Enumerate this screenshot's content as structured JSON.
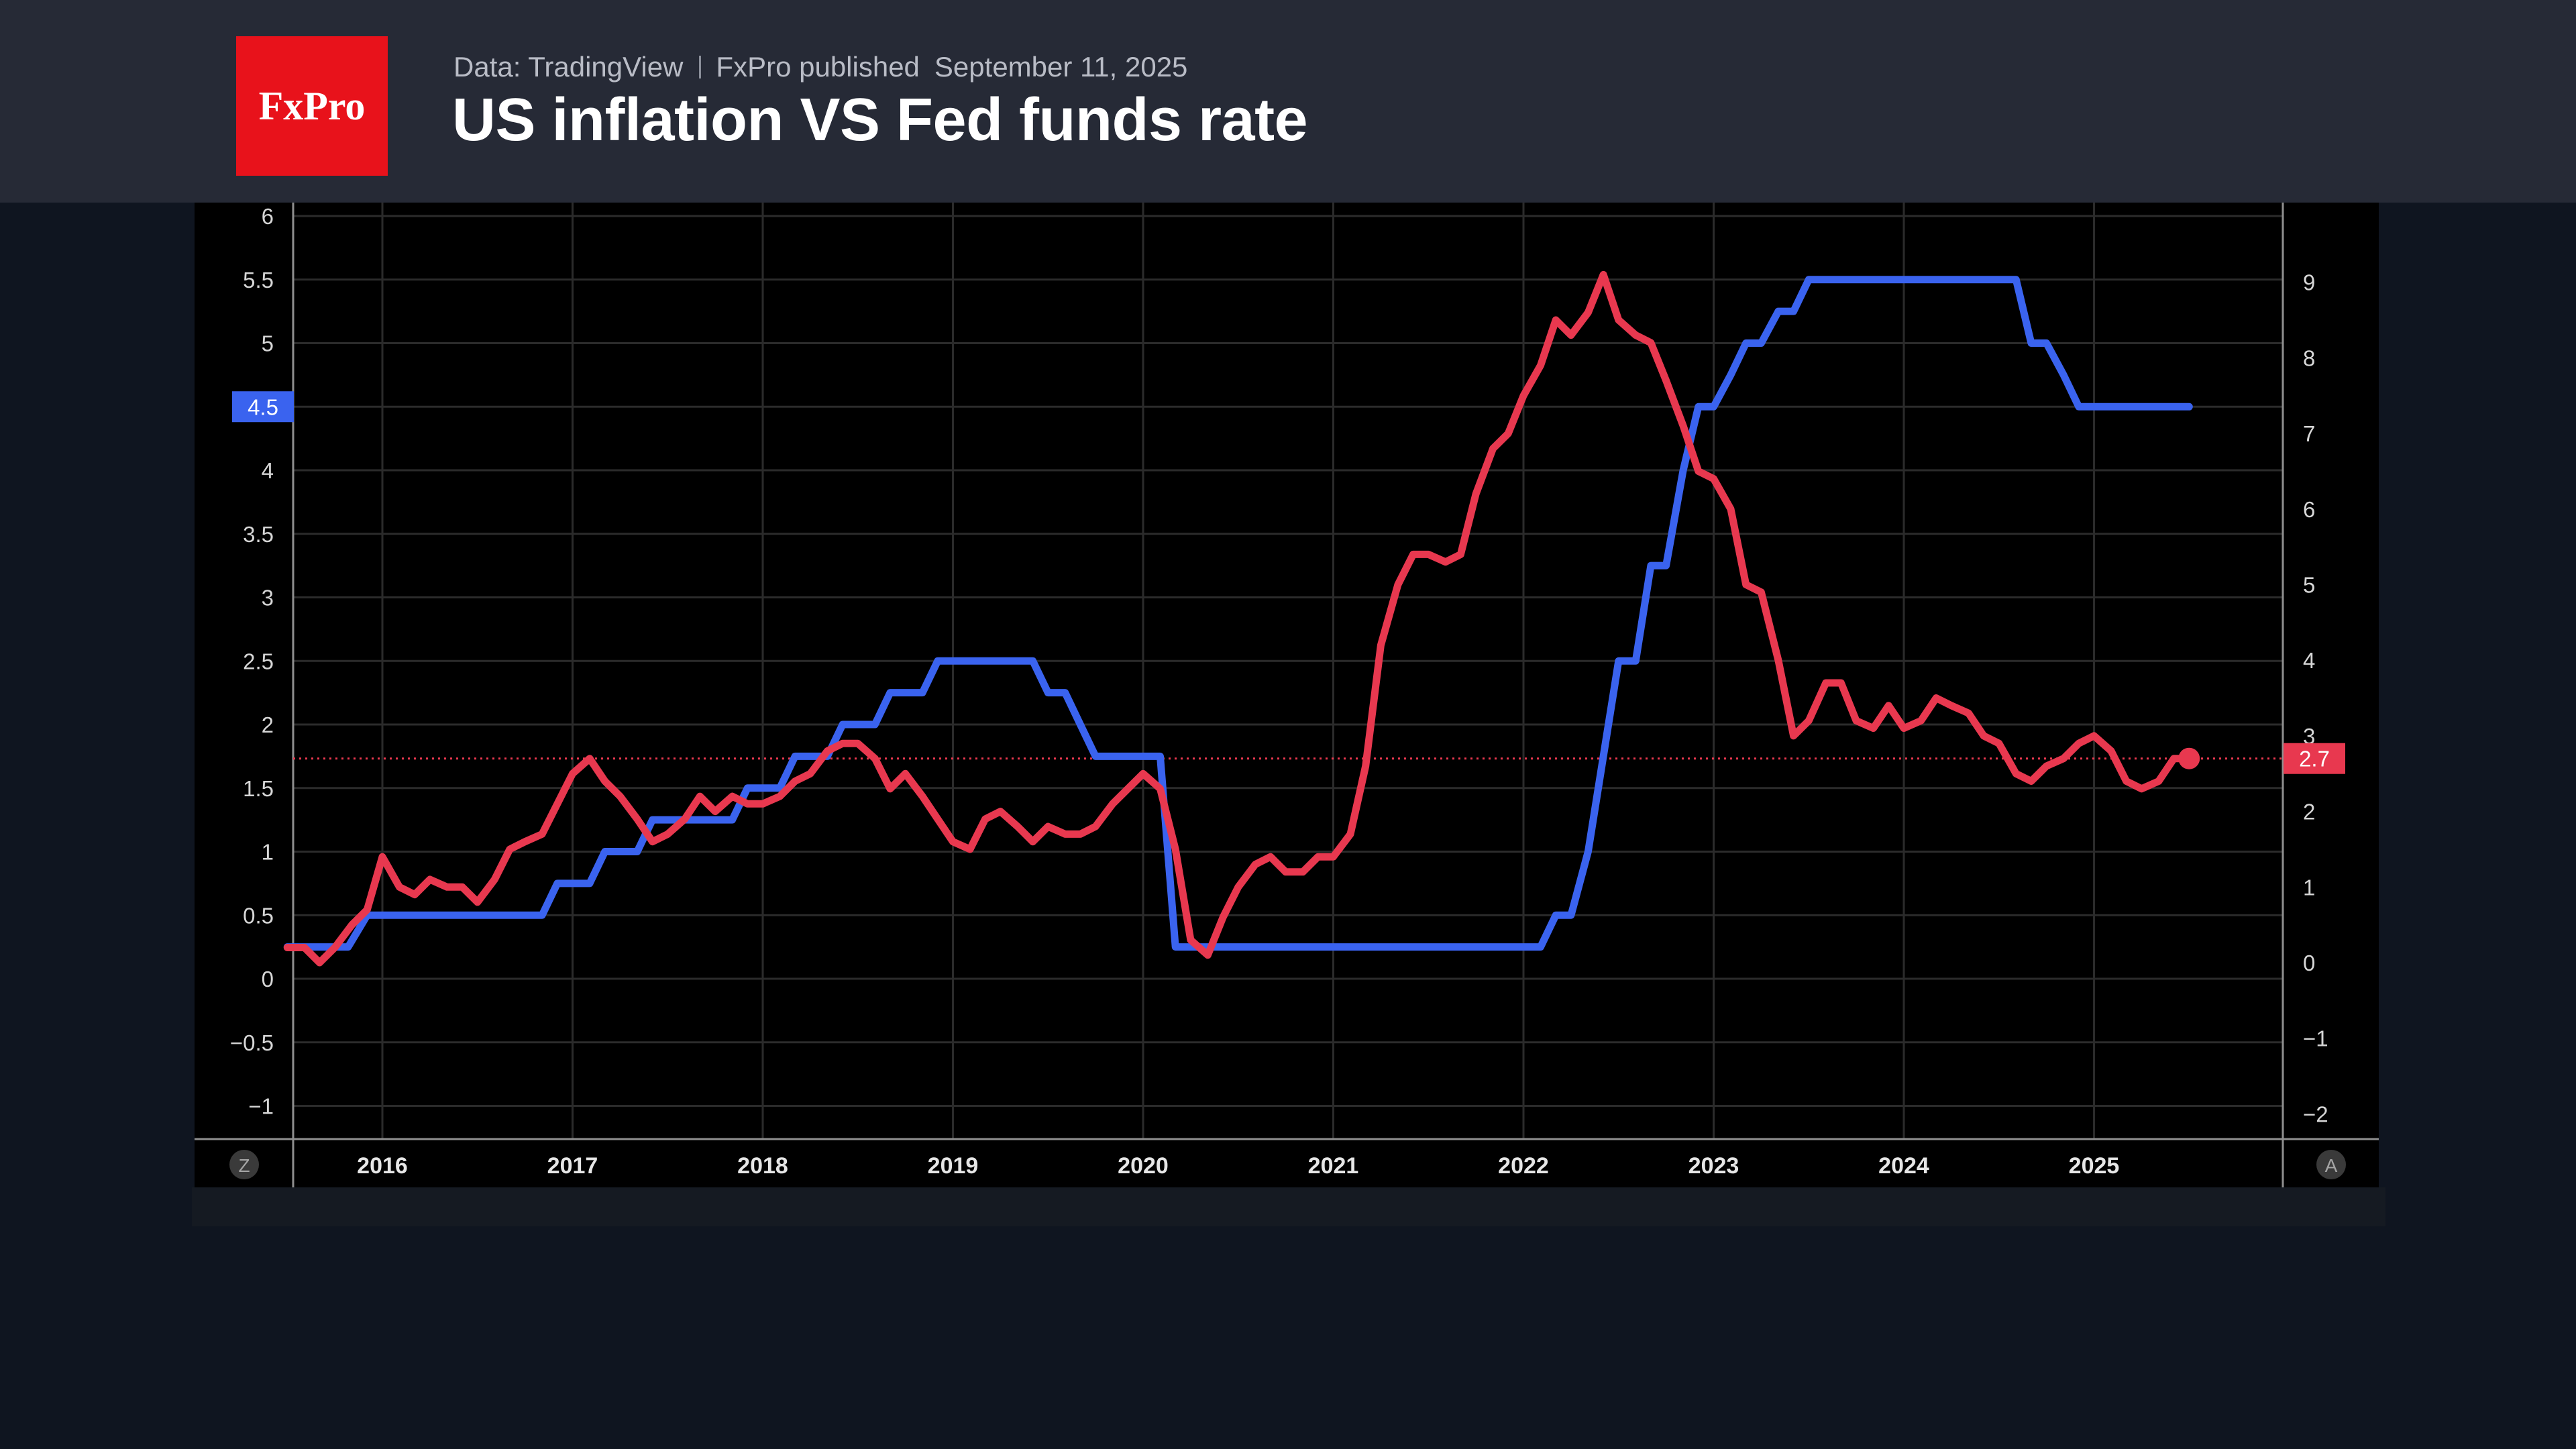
{
  "header": {
    "logo_text": "FxPro",
    "source": "Data: TradingView",
    "publisher": "FxPro published",
    "date": "September 11, 2025",
    "title": "US inflation VS Fed funds rate"
  },
  "buttons": {
    "left_scale": "Z",
    "right_scale": "A"
  },
  "colors": {
    "background": "#0f1520",
    "header": "#262a36",
    "logo": "#e8121b",
    "fed_rate": "#3a63ef",
    "inflation": "#e8384f"
  },
  "chart_data": {
    "type": "line",
    "title": "US inflation VS Fed funds rate",
    "x_labels": [
      "2016",
      "2017",
      "2018",
      "2019",
      "2020",
      "2021",
      "2022",
      "2023",
      "2024",
      "2025"
    ],
    "xlim": [
      2015.5,
      2026.0
    ],
    "left_axis": {
      "ticks": [
        6,
        5.5,
        5,
        4.5,
        4,
        3.5,
        3,
        2.5,
        2,
        1.5,
        1,
        0.5,
        0,
        -0.5,
        -1
      ],
      "tick_labels": [
        "6",
        "5.5",
        "5",
        "",
        "4",
        "3.5",
        "3",
        "2.5",
        "2",
        "1.5",
        "1",
        "0.5",
        "0",
        "−0.5",
        "−1"
      ],
      "ylim": [
        -1.1,
        6.1
      ]
    },
    "right_axis": {
      "ticks": [
        9,
        8,
        7,
        6,
        5,
        4,
        3,
        2,
        1,
        0,
        -1,
        -2
      ],
      "tick_labels": [
        "9",
        "8",
        "7",
        "6",
        "5",
        "4",
        "3",
        "2",
        "1",
        "0",
        "−1",
        "−2"
      ],
      "ylim": [
        -2.2,
        10.0
      ]
    },
    "grid": true,
    "series": [
      {
        "id": "fed_rate",
        "axis": "left",
        "color": "#3a63ef",
        "last_value_label": "4.5",
        "points": [
          [
            2015.5,
            0.25
          ],
          [
            2015.82,
            0.25
          ],
          [
            2015.92,
            0.5
          ],
          [
            2016.84,
            0.5
          ],
          [
            2016.92,
            0.75
          ],
          [
            2017.09,
            0.75
          ],
          [
            2017.17,
            1.0
          ],
          [
            2017.34,
            1.0
          ],
          [
            2017.42,
            1.25
          ],
          [
            2017.84,
            1.25
          ],
          [
            2017.92,
            1.5
          ],
          [
            2018.09,
            1.5
          ],
          [
            2018.17,
            1.75
          ],
          [
            2018.34,
            1.75
          ],
          [
            2018.42,
            2.0
          ],
          [
            2018.59,
            2.0
          ],
          [
            2018.67,
            2.25
          ],
          [
            2018.84,
            2.25
          ],
          [
            2018.92,
            2.5
          ],
          [
            2019.42,
            2.5
          ],
          [
            2019.5,
            2.25
          ],
          [
            2019.59,
            2.25
          ],
          [
            2019.67,
            2.0
          ],
          [
            2019.75,
            1.75
          ],
          [
            2020.09,
            1.75
          ],
          [
            2020.17,
            0.25
          ],
          [
            2022.09,
            0.25
          ],
          [
            2022.17,
            0.5
          ],
          [
            2022.25,
            0.5
          ],
          [
            2022.34,
            1.0
          ],
          [
            2022.42,
            1.75
          ],
          [
            2022.5,
            2.5
          ],
          [
            2022.59,
            2.5
          ],
          [
            2022.67,
            3.25
          ],
          [
            2022.75,
            3.25
          ],
          [
            2022.84,
            4.0
          ],
          [
            2022.92,
            4.5
          ],
          [
            2023.0,
            4.5
          ],
          [
            2023.09,
            4.75
          ],
          [
            2023.17,
            5.0
          ],
          [
            2023.25,
            5.0
          ],
          [
            2023.34,
            5.25
          ],
          [
            2023.42,
            5.25
          ],
          [
            2023.5,
            5.5
          ],
          [
            2024.59,
            5.5
          ],
          [
            2024.67,
            5.0
          ],
          [
            2024.75,
            5.0
          ],
          [
            2024.84,
            4.75
          ],
          [
            2024.92,
            4.5
          ],
          [
            2025.5,
            4.5
          ]
        ]
      },
      {
        "id": "inflation",
        "axis": "right",
        "color": "#e8384f",
        "last_value_label": "2.7",
        "points": [
          [
            2015.5,
            0.2
          ],
          [
            2015.59,
            0.2
          ],
          [
            2015.67,
            0.0
          ],
          [
            2015.75,
            0.2
          ],
          [
            2015.84,
            0.5
          ],
          [
            2015.92,
            0.7
          ],
          [
            2016.0,
            1.4
          ],
          [
            2016.09,
            1.0
          ],
          [
            2016.17,
            0.9
          ],
          [
            2016.25,
            1.1
          ],
          [
            2016.34,
            1.0
          ],
          [
            2016.42,
            1.0
          ],
          [
            2016.5,
            0.8
          ],
          [
            2016.59,
            1.1
          ],
          [
            2016.67,
            1.5
          ],
          [
            2016.75,
            1.6
          ],
          [
            2016.84,
            1.7
          ],
          [
            2016.92,
            2.1
          ],
          [
            2017.0,
            2.5
          ],
          [
            2017.09,
            2.7
          ],
          [
            2017.17,
            2.4
          ],
          [
            2017.25,
            2.2
          ],
          [
            2017.34,
            1.9
          ],
          [
            2017.42,
            1.6
          ],
          [
            2017.5,
            1.7
          ],
          [
            2017.59,
            1.9
          ],
          [
            2017.67,
            2.2
          ],
          [
            2017.75,
            2.0
          ],
          [
            2017.84,
            2.2
          ],
          [
            2017.92,
            2.1
          ],
          [
            2018.0,
            2.1
          ],
          [
            2018.09,
            2.2
          ],
          [
            2018.17,
            2.4
          ],
          [
            2018.25,
            2.5
          ],
          [
            2018.34,
            2.8
          ],
          [
            2018.42,
            2.9
          ],
          [
            2018.5,
            2.9
          ],
          [
            2018.59,
            2.7
          ],
          [
            2018.67,
            2.3
          ],
          [
            2018.75,
            2.5
          ],
          [
            2018.84,
            2.2
          ],
          [
            2018.92,
            1.9
          ],
          [
            2019.0,
            1.6
          ],
          [
            2019.09,
            1.5
          ],
          [
            2019.17,
            1.9
          ],
          [
            2019.25,
            2.0
          ],
          [
            2019.34,
            1.8
          ],
          [
            2019.42,
            1.6
          ],
          [
            2019.5,
            1.8
          ],
          [
            2019.59,
            1.7
          ],
          [
            2019.67,
            1.7
          ],
          [
            2019.75,
            1.8
          ],
          [
            2019.84,
            2.1
          ],
          [
            2019.92,
            2.3
          ],
          [
            2020.0,
            2.5
          ],
          [
            2020.09,
            2.3
          ],
          [
            2020.17,
            1.5
          ],
          [
            2020.25,
            0.3
          ],
          [
            2020.34,
            0.1
          ],
          [
            2020.42,
            0.6
          ],
          [
            2020.5,
            1.0
          ],
          [
            2020.59,
            1.3
          ],
          [
            2020.67,
            1.4
          ],
          [
            2020.75,
            1.2
          ],
          [
            2020.84,
            1.2
          ],
          [
            2020.92,
            1.4
          ],
          [
            2021.0,
            1.4
          ],
          [
            2021.09,
            1.7
          ],
          [
            2021.17,
            2.6
          ],
          [
            2021.25,
            4.2
          ],
          [
            2021.34,
            5.0
          ],
          [
            2021.42,
            5.4
          ],
          [
            2021.5,
            5.4
          ],
          [
            2021.59,
            5.3
          ],
          [
            2021.67,
            5.4
          ],
          [
            2021.75,
            6.2
          ],
          [
            2021.84,
            6.8
          ],
          [
            2021.92,
            7.0
          ],
          [
            2022.0,
            7.5
          ],
          [
            2022.09,
            7.9
          ],
          [
            2022.17,
            8.5
          ],
          [
            2022.25,
            8.3
          ],
          [
            2022.34,
            8.6
          ],
          [
            2022.42,
            9.1
          ],
          [
            2022.5,
            8.5
          ],
          [
            2022.59,
            8.3
          ],
          [
            2022.67,
            8.2
          ],
          [
            2022.75,
            7.7
          ],
          [
            2022.84,
            7.1
          ],
          [
            2022.92,
            6.5
          ],
          [
            2023.0,
            6.4
          ],
          [
            2023.09,
            6.0
          ],
          [
            2023.17,
            5.0
          ],
          [
            2023.25,
            4.9
          ],
          [
            2023.34,
            4.0
          ],
          [
            2023.42,
            3.0
          ],
          [
            2023.5,
            3.2
          ],
          [
            2023.59,
            3.7
          ],
          [
            2023.67,
            3.7
          ],
          [
            2023.75,
            3.2
          ],
          [
            2023.84,
            3.1
          ],
          [
            2023.92,
            3.4
          ],
          [
            2024.0,
            3.1
          ],
          [
            2024.09,
            3.2
          ],
          [
            2024.17,
            3.5
          ],
          [
            2024.25,
            3.4
          ],
          [
            2024.34,
            3.3
          ],
          [
            2024.42,
            3.0
          ],
          [
            2024.5,
            2.9
          ],
          [
            2024.59,
            2.5
          ],
          [
            2024.67,
            2.4
          ],
          [
            2024.75,
            2.6
          ],
          [
            2024.84,
            2.7
          ],
          [
            2024.92,
            2.9
          ],
          [
            2025.0,
            3.0
          ],
          [
            2025.09,
            2.8
          ],
          [
            2025.17,
            2.4
          ],
          [
            2025.25,
            2.3
          ],
          [
            2025.34,
            2.4
          ],
          [
            2025.42,
            2.7
          ],
          [
            2025.5,
            2.7
          ]
        ]
      }
    ]
  }
}
